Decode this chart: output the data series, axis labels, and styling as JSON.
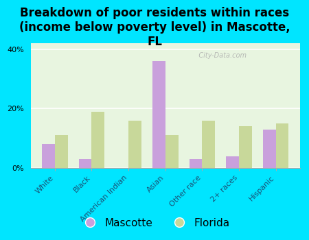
{
  "title": "Breakdown of poor residents within races\n(income below poverty level) in Mascotte,\nFL",
  "categories": [
    "White",
    "Black",
    "American Indian",
    "Asian",
    "Other race",
    "2+ races",
    "Hispanic"
  ],
  "mascotte_values": [
    8,
    3,
    0,
    36,
    3,
    4,
    13
  ],
  "florida_values": [
    11,
    19,
    16,
    11,
    16,
    14,
    15
  ],
  "mascotte_color": "#c9a0dc",
  "florida_color": "#c8d89a",
  "bg_outer": "#00e5ff",
  "bg_plot": "#e8f5e0",
  "ylim": [
    0,
    42
  ],
  "yticks": [
    0,
    20,
    40
  ],
  "ytick_labels": [
    "0%",
    "20%",
    "40%"
  ],
  "watermark": "   City-Data.com",
  "bar_width": 0.35,
  "title_fontsize": 12,
  "tick_fontsize": 8,
  "legend_fontsize": 11
}
